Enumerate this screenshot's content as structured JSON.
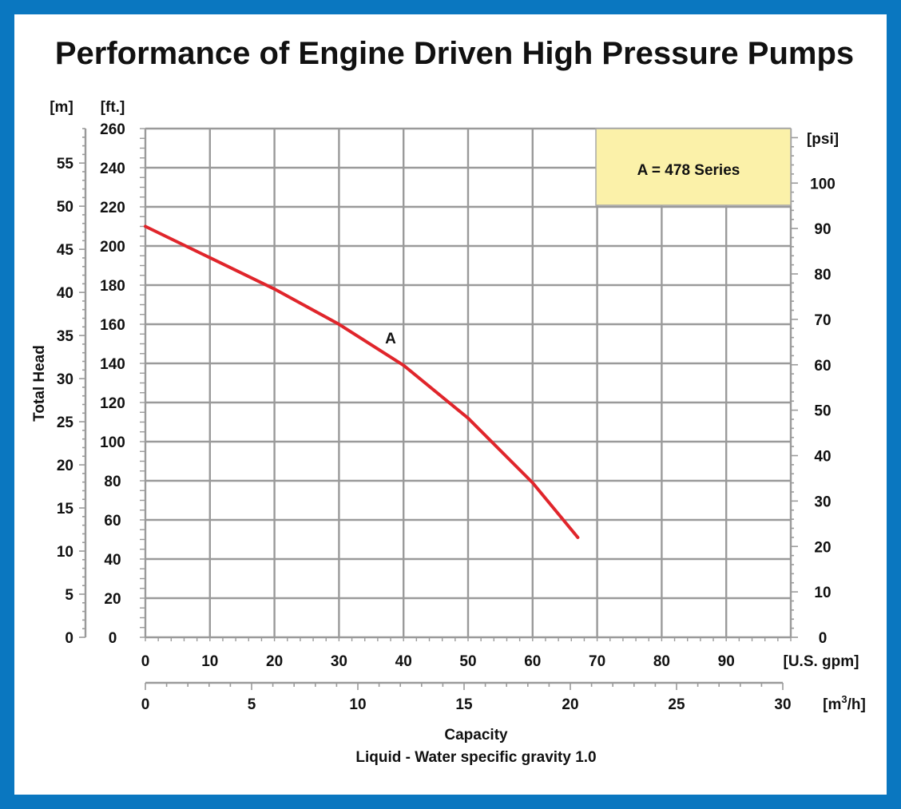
{
  "chart_data": {
    "type": "line",
    "title": "Performance of Engine Driven High Pressure Pumps",
    "xlabel": "Capacity",
    "xlabel_note": "Liquid - Water specific gravity 1.0",
    "ylabel": "Total Head",
    "x_primary": {
      "unit": "[U.S. gpm]",
      "range": [
        0,
        100
      ],
      "ticks": [
        "0",
        "10",
        "20",
        "30",
        "40",
        "50",
        "60",
        "70",
        "80",
        "90"
      ]
    },
    "x_secondary": {
      "unit": "[m3/h]",
      "unit_base": "[m",
      "unit_sup": "3",
      "unit_tail": "/h]",
      "range": [
        0,
        30
      ],
      "ticks": [
        "0",
        "5",
        "10",
        "15",
        "20",
        "25",
        "30"
      ]
    },
    "y_ft": {
      "unit": "[ft.]",
      "range": [
        0,
        260
      ],
      "ticks": [
        "0",
        "20",
        "40",
        "60",
        "80",
        "100",
        "120",
        "140",
        "160",
        "180",
        "200",
        "220",
        "240",
        "260"
      ]
    },
    "y_m": {
      "unit": "[m]",
      "range": [
        0,
        59
      ],
      "ticks": [
        "0",
        "5",
        "10",
        "15",
        "20",
        "25",
        "30",
        "35",
        "40",
        "45",
        "50",
        "55"
      ]
    },
    "y_psi": {
      "unit": "[psi]",
      "range": [
        0,
        112
      ],
      "ticks": [
        "0",
        "10",
        "20",
        "30",
        "40",
        "50",
        "60",
        "70",
        "80",
        "90",
        "100"
      ]
    },
    "legend": {
      "text": "A = 478 Series",
      "position": "top-right",
      "bg": "#fbf1a9"
    },
    "series": [
      {
        "name": "A",
        "label": "A",
        "color": "#e0252b",
        "x": [
          0,
          10,
          20,
          30,
          40,
          50,
          60,
          67
        ],
        "y": [
          210,
          194,
          178,
          160,
          139,
          112,
          79,
          51
        ]
      }
    ],
    "grid": true
  }
}
